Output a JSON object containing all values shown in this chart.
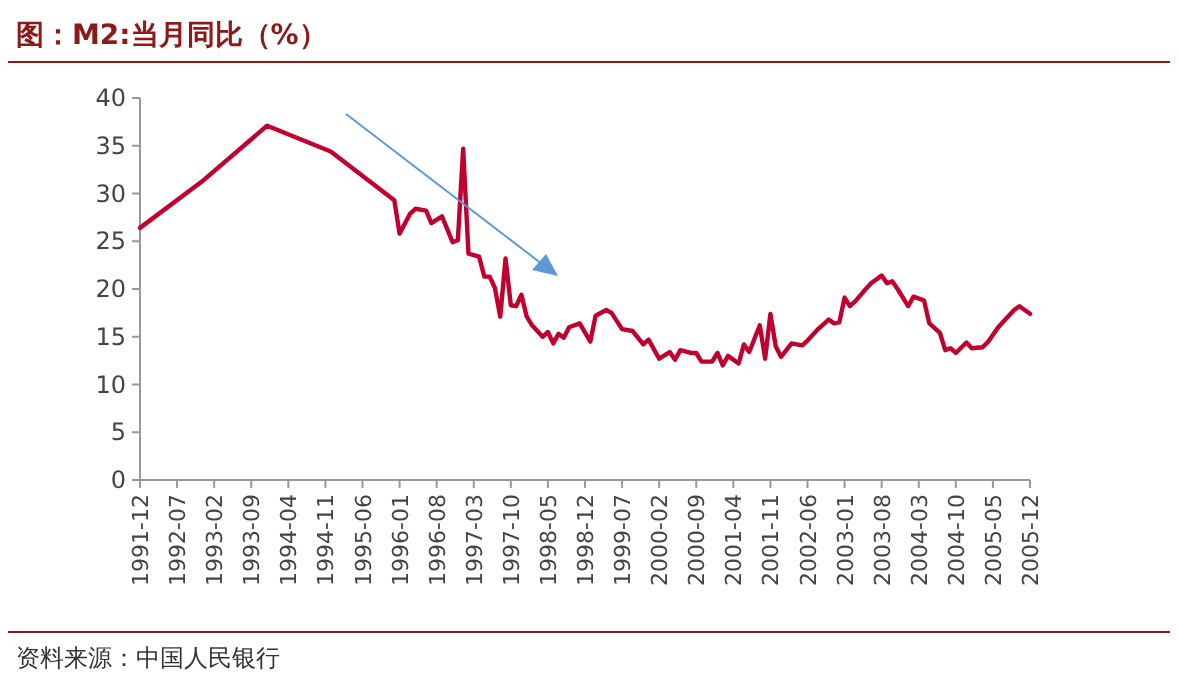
{
  "chart_data": {
    "type": "line",
    "title": "图：M2:当月同比（%）",
    "annotations": [
      "资料来源：中国人民银行"
    ],
    "x": [
      "1991-12",
      "1992-12",
      "1993-12",
      "1994-12",
      "1995-12",
      "1996-01",
      "1996-03",
      "1996-04",
      "1996-06",
      "1996-07",
      "1996-09",
      "1996-11",
      "1996-12",
      "1997-01",
      "1997-02",
      "1997-04",
      "1997-05",
      "1997-06",
      "1997-07",
      "1997-08",
      "1997-09",
      "1997-10",
      "1997-11",
      "1997-12",
      "1998-01",
      "1998-02",
      "1998-04",
      "1998-05",
      "1998-06",
      "1998-07",
      "1998-08",
      "1998-09",
      "1998-11",
      "1999-01",
      "1999-02",
      "1999-04",
      "1999-05",
      "1999-07",
      "1999-09",
      "1999-11",
      "1999-12",
      "2000-02",
      "2000-04",
      "2000-05",
      "2000-06",
      "2000-08",
      "2000-09",
      "2000-10",
      "2000-12",
      "2001-01",
      "2001-02",
      "2001-03",
      "2001-05",
      "2001-06",
      "2001-07",
      "2001-09",
      "2001-10",
      "2001-11",
      "2001-12",
      "2002-01",
      "2002-03",
      "2002-05",
      "2002-06",
      "2002-08",
      "2002-10",
      "2002-11",
      "2002-12",
      "2003-01",
      "2003-02",
      "2003-03",
      "2003-05",
      "2003-06",
      "2003-08",
      "2003-09",
      "2003-10",
      "2003-11",
      "2004-01",
      "2004-02",
      "2004-04",
      "2004-05",
      "2004-07",
      "2004-08",
      "2004-09",
      "2004-10",
      "2004-12",
      "2005-01",
      "2005-03",
      "2005-04",
      "2005-06",
      "2005-09",
      "2005-10",
      "2005-12"
    ],
    "series": [
      {
        "color": "#c0002f",
        "values": [
          26.4,
          31.4,
          37.1,
          34.4,
          29.3,
          25.8,
          27.9,
          28.4,
          28.2,
          26.9,
          27.6,
          24.9,
          25.1,
          34.7,
          23.7,
          23.4,
          21.3,
          21.3,
          20.1,
          17.1,
          23.2,
          18.3,
          18.2,
          19.4,
          17.1,
          16.2,
          15.0,
          15.5,
          14.3,
          15.3,
          14.9,
          16.0,
          16.4,
          14.5,
          17.2,
          17.8,
          17.5,
          15.8,
          15.6,
          14.2,
          14.7,
          12.7,
          13.4,
          12.6,
          13.6,
          13.3,
          13.3,
          12.4,
          12.4,
          13.3,
          12.0,
          13.0,
          12.2,
          14.2,
          13.4,
          16.2,
          12.7,
          17.4,
          14.0,
          12.9,
          14.3,
          14.1,
          14.6,
          15.8,
          16.8,
          16.4,
          16.5,
          19.1,
          18.2,
          18.7,
          20.0,
          20.6,
          21.4,
          20.6,
          20.8,
          20.0,
          18.2,
          19.2,
          18.8,
          16.4,
          15.4,
          13.6,
          13.8,
          13.3,
          14.4,
          13.8,
          13.9,
          14.4,
          16.0,
          17.8,
          18.2,
          17.4
        ]
      }
    ],
    "xlim": [
      "1991-12",
      "2005-12"
    ],
    "xticks": [
      "1991-12",
      "1992-07",
      "1993-02",
      "1993-09",
      "1994-04",
      "1994-11",
      "1995-06",
      "1996-01",
      "1996-08",
      "1997-03",
      "1997-10",
      "1998-05",
      "1998-12",
      "1999-07",
      "2000-02",
      "2000-09",
      "2001-04",
      "2001-11",
      "2002-06",
      "2003-01",
      "2003-08",
      "2004-03",
      "2004-10",
      "2005-05",
      "2005-12"
    ],
    "ylim": [
      0,
      40
    ],
    "yticks": [
      0,
      5,
      10,
      15,
      20,
      25,
      30,
      35,
      40
    ]
  }
}
